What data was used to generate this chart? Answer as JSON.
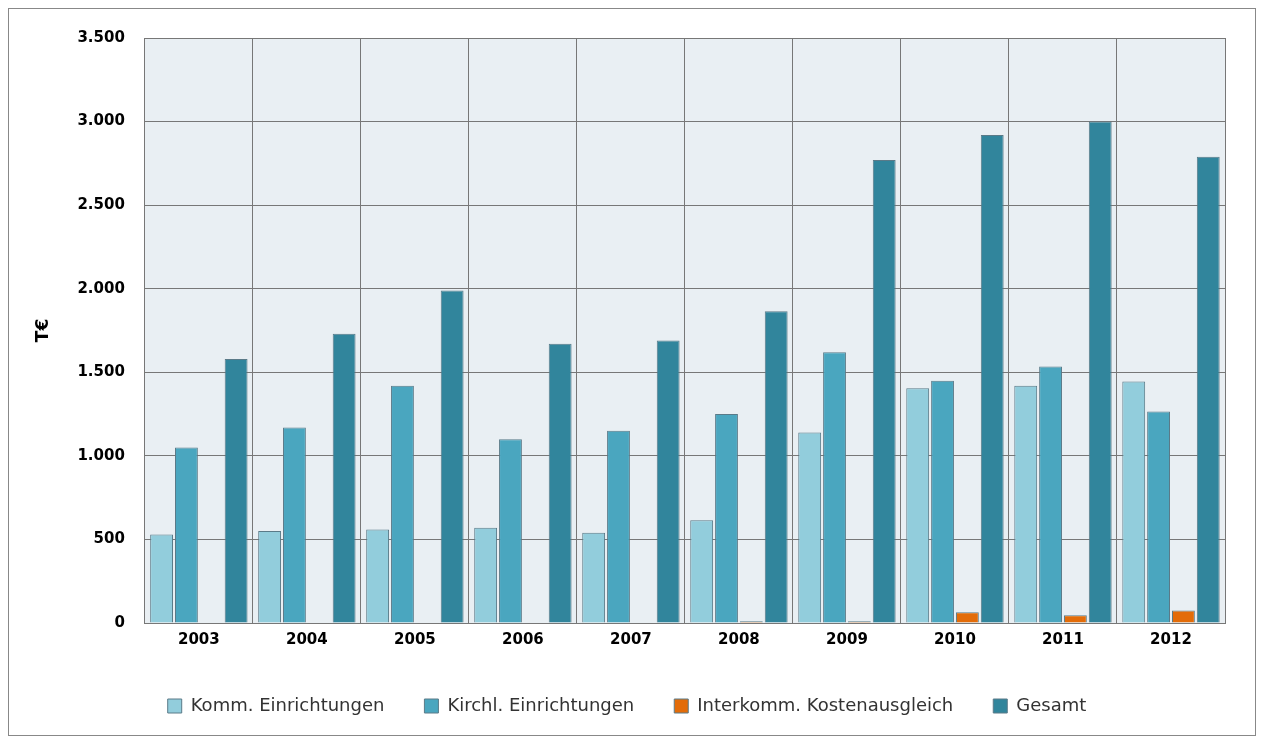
{
  "chart_data": {
    "type": "bar",
    "ylabel": "T€",
    "categories": [
      "2003",
      "2004",
      "2005",
      "2006",
      "2007",
      "2008",
      "2009",
      "2010",
      "2011",
      "2012"
    ],
    "series": [
      {
        "name": "Komm. Einrichtungen",
        "color": "#92cddc",
        "values": [
          530,
          550,
          560,
          570,
          540,
          615,
          1140,
          1405,
          1420,
          1445
        ]
      },
      {
        "name": "Kirchl. Einrichtungen",
        "color": "#4aa6bf",
        "values": [
          1050,
          1170,
          1420,
          1100,
          1150,
          1250,
          1620,
          1450,
          1535,
          1265
        ]
      },
      {
        "name": "Interkomm. Kostenausgleich",
        "color": "#e36c09",
        "values": [
          0,
          0,
          0,
          0,
          0,
          10,
          10,
          65,
          47,
          75
        ]
      },
      {
        "name": "Gesamt",
        "color": "#31859c",
        "values": [
          1580,
          1730,
          1990,
          1670,
          1690,
          1865,
          2770,
          2920,
          3000,
          2790
        ]
      }
    ],
    "ylim": [
      0,
      3500
    ],
    "yticks": [
      {
        "value": 0,
        "label": "0"
      },
      {
        "value": 500,
        "label": "500"
      },
      {
        "value": 1000,
        "label": "1.000"
      },
      {
        "value": 1500,
        "label": "1.500"
      },
      {
        "value": 2000,
        "label": "2.000"
      },
      {
        "value": 2500,
        "label": "2.500"
      },
      {
        "value": 3000,
        "label": "3.000"
      },
      {
        "value": 3500,
        "label": "3.500"
      }
    ],
    "grid": true,
    "legend": "bottom"
  }
}
